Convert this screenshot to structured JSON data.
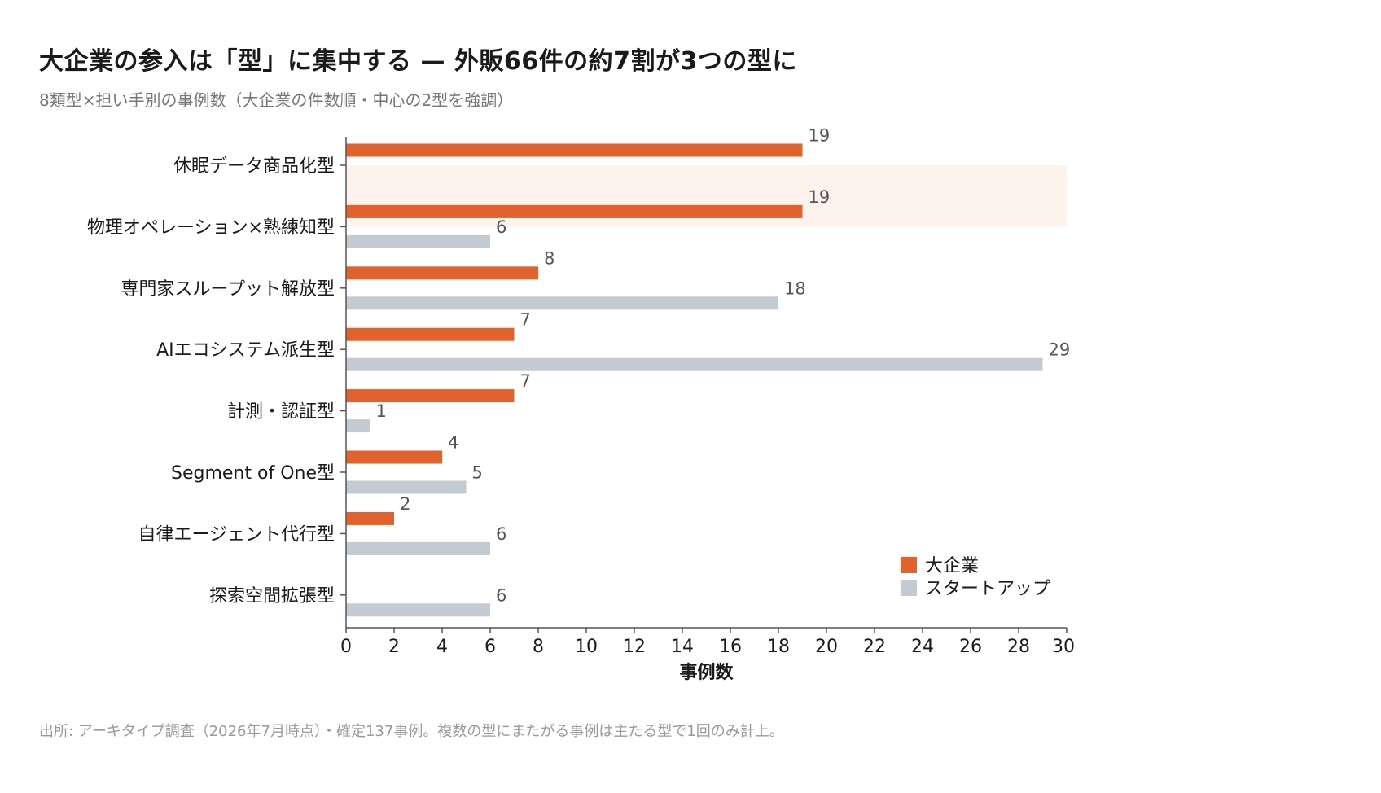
{
  "title": "大企業の参入は「型」に集中する — 外販66件の約7割が3つの型に",
  "subtitle": "8類型×担い手別の事例数（大企業の件数順・中心の2型を強調）",
  "source": "出所: アーキタイプ調査（2026年7月時点）・確定137事例。複数の型にまたがる事例は主たる型で1回のみ計上。",
  "colors": {
    "large_company": "#e0622e",
    "startup": "#c4cad2",
    "highlight": "#fdf2ec",
    "axis": "#555555"
  },
  "chart_data": {
    "type": "bar",
    "orientation": "horizontal",
    "categories": [
      "休眠データ商品化型",
      "物理オペレーション×熟練知型",
      "専門家スループット解放型",
      "AIエコシステム派生型",
      "計測・認証型",
      "Segment of One型",
      "自律エージェント代行型",
      "探索空間拡張型"
    ],
    "series": [
      {
        "name": "大企業",
        "values": [
          19,
          19,
          8,
          7,
          7,
          4,
          2,
          0
        ]
      },
      {
        "name": "スタートアップ",
        "values": [
          null,
          6,
          18,
          29,
          1,
          5,
          6,
          6
        ]
      }
    ],
    "highlighted_categories": [
      "休眠データ商品化型",
      "物理オペレーション×熟練知型"
    ],
    "xlabel": "事例数",
    "ylabel": "",
    "xlim": [
      0,
      30
    ],
    "xticks": [
      0,
      2,
      4,
      6,
      8,
      10,
      12,
      14,
      16,
      18,
      20,
      22,
      24,
      26,
      28,
      30
    ],
    "grid": false,
    "legend_position": "bottom-right"
  }
}
